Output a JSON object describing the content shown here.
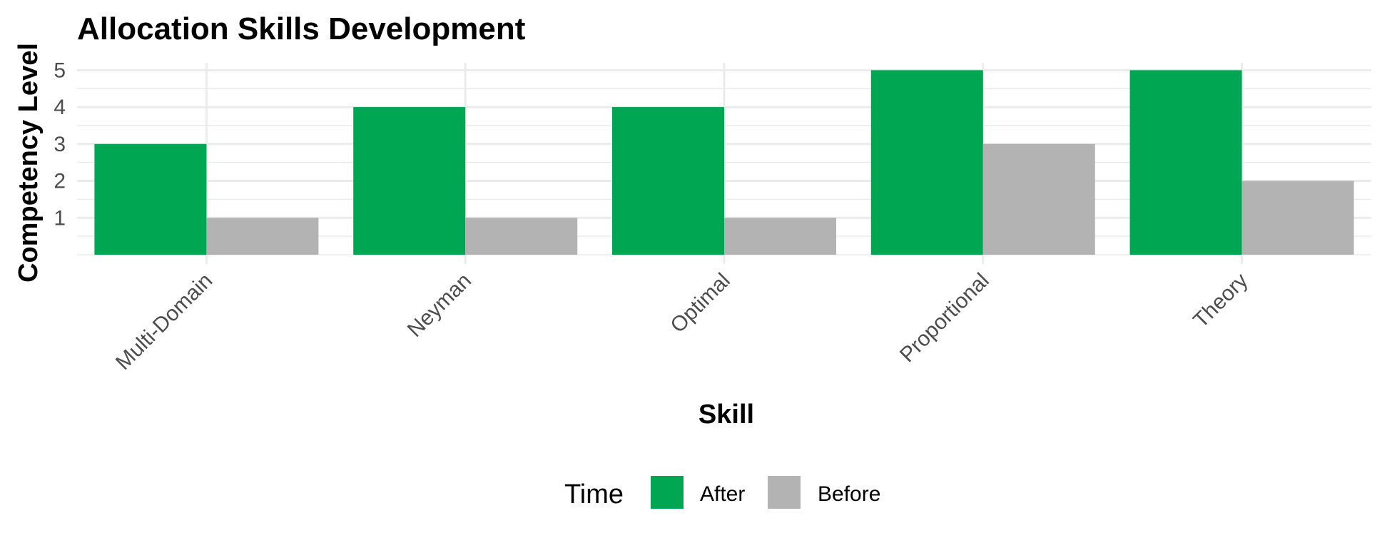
{
  "chart_data": {
    "type": "bar",
    "title": "Allocation Skills Development",
    "xlabel": "Skill",
    "ylabel": "Competency Level",
    "categories": [
      "Multi-Domain",
      "Neyman",
      "Optimal",
      "Proportional",
      "Theory"
    ],
    "series": [
      {
        "name": "After",
        "color": "#00a651",
        "values": [
          3,
          4,
          4,
          5,
          5
        ]
      },
      {
        "name": "Before",
        "color": "#b3b3b3",
        "values": [
          1,
          1,
          1,
          3,
          2
        ]
      }
    ],
    "yticks": [
      1,
      2,
      3,
      4,
      5
    ],
    "ylim": [
      0,
      5.2
    ],
    "grid": true,
    "legend": {
      "title": "Time",
      "position": "bottom"
    }
  }
}
